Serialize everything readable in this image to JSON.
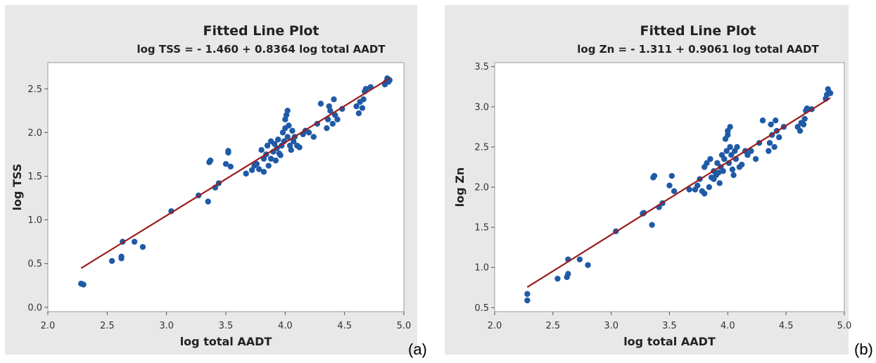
{
  "chart_data": [
    {
      "type": "scatter",
      "panel_label": "(a)",
      "title": "Fitted Line Plot",
      "subtitle": "log TSS = - 1.460 + 0.8364 log total AADT",
      "xlabel": "log total AADT",
      "ylabel": "log TSS",
      "xlim": [
        2.0,
        5.0
      ],
      "ylim": [
        -0.05,
        2.8
      ],
      "x_ticks": [
        "2.0",
        "2.5",
        "3.0",
        "3.5",
        "4.0",
        "4.5",
        "5.0"
      ],
      "y_ticks": [
        "0.0",
        "0.5",
        "1.0",
        "1.5",
        "2.0",
        "2.5"
      ],
      "fit": {
        "intercept": -1.46,
        "slope": 0.8364,
        "x_range": [
          2.28,
          4.88
        ]
      },
      "colors": {
        "points": "#1f5aa6",
        "line": "#9b1c1c",
        "frame": "#e8e8e8",
        "plot": "#ffffff"
      },
      "points": [
        [
          2.28,
          0.27
        ],
        [
          2.3,
          0.26
        ],
        [
          2.54,
          0.53
        ],
        [
          2.62,
          0.56
        ],
        [
          2.62,
          0.58
        ],
        [
          2.63,
          0.75
        ],
        [
          2.73,
          0.75
        ],
        [
          2.8,
          0.69
        ],
        [
          3.04,
          1.1
        ],
        [
          3.27,
          1.28
        ],
        [
          3.35,
          1.21
        ],
        [
          3.36,
          1.66
        ],
        [
          3.37,
          1.68
        ],
        [
          3.41,
          1.37
        ],
        [
          3.44,
          1.42
        ],
        [
          3.5,
          1.64
        ],
        [
          3.52,
          1.77
        ],
        [
          3.52,
          1.79
        ],
        [
          3.54,
          1.61
        ],
        [
          3.67,
          1.53
        ],
        [
          3.72,
          1.57
        ],
        [
          3.74,
          1.62
        ],
        [
          3.76,
          1.64
        ],
        [
          3.78,
          1.58
        ],
        [
          3.8,
          1.8
        ],
        [
          3.82,
          1.55
        ],
        [
          3.82,
          1.7
        ],
        [
          3.84,
          1.75
        ],
        [
          3.85,
          1.85
        ],
        [
          3.86,
          1.62
        ],
        [
          3.88,
          1.7
        ],
        [
          3.88,
          1.9
        ],
        [
          3.9,
          1.78
        ],
        [
          3.91,
          1.87
        ],
        [
          3.92,
          1.68
        ],
        [
          3.93,
          1.82
        ],
        [
          3.94,
          1.92
        ],
        [
          3.95,
          1.76
        ],
        [
          3.96,
          1.74
        ],
        [
          3.97,
          1.85
        ],
        [
          3.98,
          2.0
        ],
        [
          3.99,
          1.9
        ],
        [
          4.0,
          2.05
        ],
        [
          4.0,
          2.15
        ],
        [
          4.01,
          2.2
        ],
        [
          4.02,
          2.25
        ],
        [
          4.02,
          1.95
        ],
        [
          4.03,
          2.08
        ],
        [
          4.04,
          1.85
        ],
        [
          4.05,
          1.8
        ],
        [
          4.06,
          2.02
        ],
        [
          4.07,
          1.9
        ],
        [
          4.08,
          1.95
        ],
        [
          4.1,
          1.85
        ],
        [
          4.12,
          1.83
        ],
        [
          4.15,
          1.98
        ],
        [
          4.17,
          2.02
        ],
        [
          4.2,
          2.0
        ],
        [
          4.24,
          1.95
        ],
        [
          4.27,
          2.1
        ],
        [
          4.3,
          2.33
        ],
        [
          4.35,
          2.05
        ],
        [
          4.36,
          2.15
        ],
        [
          4.37,
          2.3
        ],
        [
          4.38,
          2.25
        ],
        [
          4.4,
          2.1
        ],
        [
          4.41,
          2.38
        ],
        [
          4.42,
          2.2
        ],
        [
          4.44,
          2.15
        ],
        [
          4.48,
          2.27
        ],
        [
          4.6,
          2.3
        ],
        [
          4.62,
          2.22
        ],
        [
          4.63,
          2.35
        ],
        [
          4.65,
          2.28
        ],
        [
          4.66,
          2.38
        ],
        [
          4.67,
          2.47
        ],
        [
          4.68,
          2.5
        ],
        [
          4.72,
          2.52
        ],
        [
          4.84,
          2.55
        ],
        [
          4.85,
          2.58
        ],
        [
          4.86,
          2.62
        ],
        [
          4.87,
          2.58
        ],
        [
          4.88,
          2.6
        ]
      ]
    },
    {
      "type": "scatter",
      "panel_label": "(b)",
      "title": "Fitted Line Plot",
      "subtitle": "log Zn = - 1.311 + 0.9061 log total AADT",
      "xlabel": "log total AADT",
      "ylabel": "log Zn",
      "xlim": [
        2.0,
        5.0
      ],
      "ylim": [
        0.45,
        3.55
      ],
      "x_ticks": [
        "2.0",
        "2.5",
        "3.0",
        "3.5",
        "4.0",
        "4.5",
        "5.0"
      ],
      "y_ticks": [
        "0.5",
        "1.0",
        "1.5",
        "2.0",
        "2.5",
        "3.0",
        "3.5"
      ],
      "fit": {
        "intercept": -1.311,
        "slope": 0.9061,
        "x_range": [
          2.28,
          4.88
        ]
      },
      "colors": {
        "points": "#1f5aa6",
        "line": "#9b1c1c",
        "frame": "#e8e8e8",
        "plot": "#ffffff"
      },
      "points": [
        [
          2.28,
          0.59
        ],
        [
          2.28,
          0.67
        ],
        [
          2.54,
          0.86
        ],
        [
          2.62,
          0.88
        ],
        [
          2.63,
          0.92
        ],
        [
          2.63,
          1.1
        ],
        [
          2.73,
          1.1
        ],
        [
          2.8,
          1.03
        ],
        [
          3.04,
          1.45
        ],
        [
          3.27,
          1.67
        ],
        [
          3.28,
          1.68
        ],
        [
          3.35,
          1.53
        ],
        [
          3.36,
          2.12
        ],
        [
          3.37,
          2.14
        ],
        [
          3.41,
          1.75
        ],
        [
          3.44,
          1.8
        ],
        [
          3.5,
          2.02
        ],
        [
          3.52,
          2.14
        ],
        [
          3.54,
          1.95
        ],
        [
          3.67,
          1.97
        ],
        [
          3.72,
          1.97
        ],
        [
          3.74,
          2.02
        ],
        [
          3.76,
          2.1
        ],
        [
          3.78,
          1.95
        ],
        [
          3.8,
          2.25
        ],
        [
          3.8,
          1.92
        ],
        [
          3.82,
          2.3
        ],
        [
          3.84,
          2.0
        ],
        [
          3.85,
          2.35
        ],
        [
          3.86,
          2.12
        ],
        [
          3.88,
          2.1
        ],
        [
          3.88,
          2.2
        ],
        [
          3.9,
          2.15
        ],
        [
          3.91,
          2.3
        ],
        [
          3.92,
          2.18
        ],
        [
          3.93,
          2.05
        ],
        [
          3.94,
          2.25
        ],
        [
          3.95,
          2.4
        ],
        [
          3.96,
          2.2
        ],
        [
          3.97,
          2.35
        ],
        [
          3.98,
          2.6
        ],
        [
          3.99,
          2.45
        ],
        [
          4.0,
          2.65
        ],
        [
          4.0,
          2.7
        ],
        [
          4.01,
          2.3
        ],
        [
          4.02,
          2.75
        ],
        [
          4.02,
          2.5
        ],
        [
          4.03,
          2.4
        ],
        [
          4.04,
          2.22
        ],
        [
          4.05,
          2.15
        ],
        [
          4.06,
          2.45
        ],
        [
          4.07,
          2.35
        ],
        [
          4.08,
          2.5
        ],
        [
          4.1,
          2.25
        ],
        [
          4.12,
          2.28
        ],
        [
          4.15,
          2.45
        ],
        [
          4.17,
          2.4
        ],
        [
          4.2,
          2.45
        ],
        [
          4.24,
          2.35
        ],
        [
          4.27,
          2.55
        ],
        [
          4.3,
          2.83
        ],
        [
          4.35,
          2.45
        ],
        [
          4.36,
          2.55
        ],
        [
          4.37,
          2.78
        ],
        [
          4.38,
          2.65
        ],
        [
          4.4,
          2.5
        ],
        [
          4.41,
          2.83
        ],
        [
          4.42,
          2.7
        ],
        [
          4.44,
          2.62
        ],
        [
          4.48,
          2.75
        ],
        [
          4.6,
          2.75
        ],
        [
          4.62,
          2.7
        ],
        [
          4.63,
          2.8
        ],
        [
          4.65,
          2.78
        ],
        [
          4.66,
          2.85
        ],
        [
          4.67,
          2.95
        ],
        [
          4.68,
          2.98
        ],
        [
          4.72,
          2.97
        ],
        [
          4.84,
          3.1
        ],
        [
          4.85,
          3.15
        ],
        [
          4.86,
          3.22
        ],
        [
          4.87,
          3.18
        ],
        [
          4.88,
          3.17
        ]
      ]
    }
  ]
}
